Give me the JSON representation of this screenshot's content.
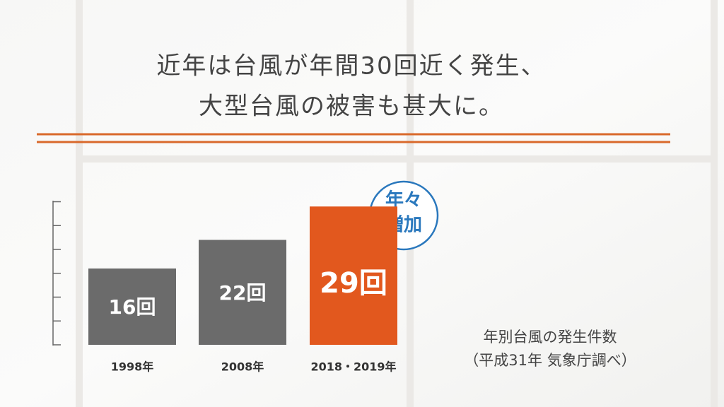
{
  "chart_data": {
    "type": "bar",
    "title": [
      "近年は台風が年間30回近く発生、",
      "大型台風の被害も甚大に。"
    ],
    "categories": [
      "1998年",
      "2008年",
      "2018・2019年"
    ],
    "values": [
      16,
      22,
      29
    ],
    "value_labels": [
      "16回",
      "22回",
      "29回"
    ],
    "colors": [
      "#6b6b6b",
      "#6b6b6b",
      "#e2581e"
    ],
    "ylim": [
      0,
      30
    ],
    "yticks": [
      0,
      5,
      10,
      15,
      20,
      25,
      30
    ],
    "badge": [
      "年々",
      "増加"
    ],
    "note": [
      "年別台風の発生件数",
      "（平成31年 気象庁調べ）"
    ]
  }
}
